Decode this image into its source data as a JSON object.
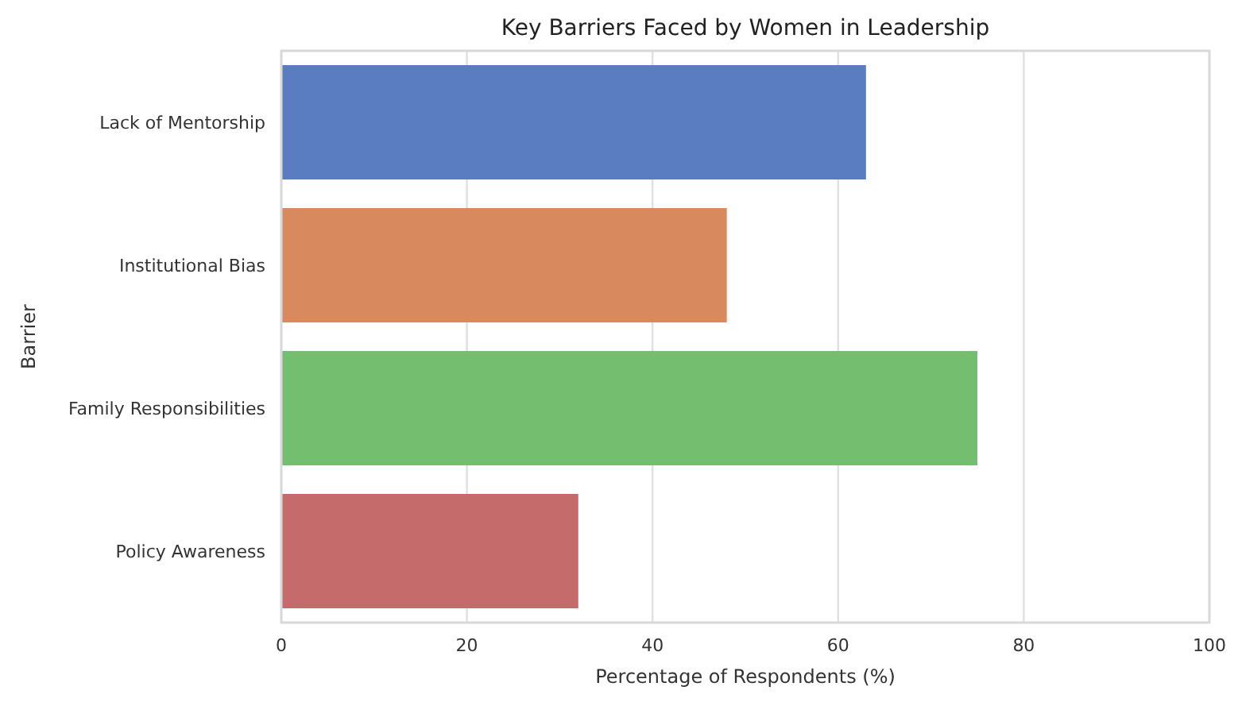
{
  "chart_data": {
    "type": "bar",
    "orientation": "horizontal",
    "title": "Key Barriers Faced by Women in Leadership",
    "xlabel": "Percentage of Respondents (%)",
    "ylabel": "Barrier",
    "categories": [
      "Lack of Mentorship",
      "Institutional Bias",
      "Family Responsibilities",
      "Policy Awareness"
    ],
    "values": [
      63,
      48,
      75,
      32
    ],
    "colors": [
      "#5a7cc0",
      "#d9895e",
      "#74bf6f",
      "#c66b6b"
    ],
    "xlim": [
      0,
      100
    ],
    "xticks": [
      0,
      20,
      40,
      60,
      80,
      100
    ],
    "grid": "x"
  }
}
